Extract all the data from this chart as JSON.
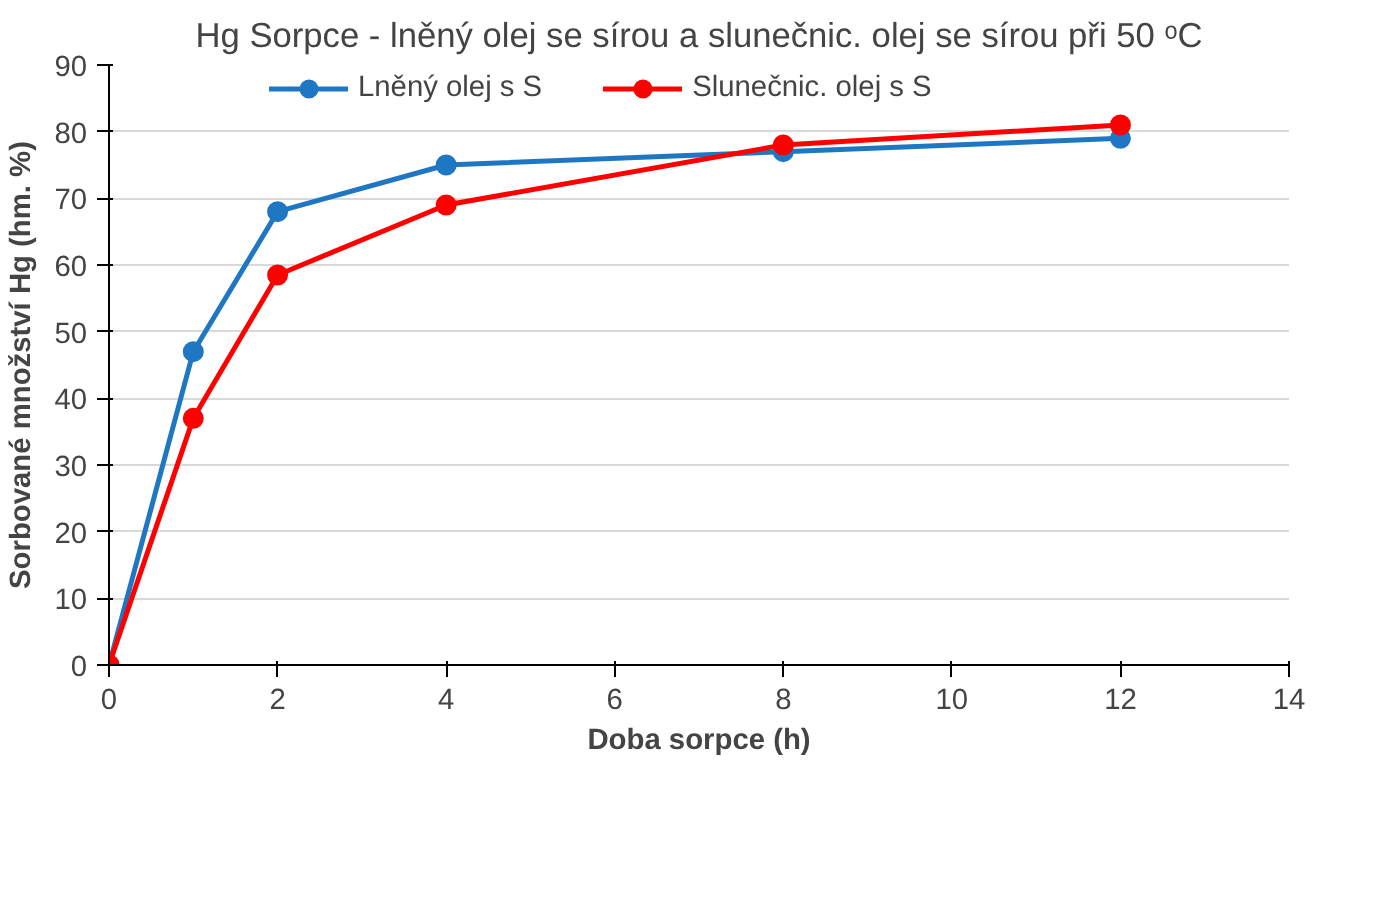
{
  "chart_data": {
    "type": "line",
    "title": "Hg Sorpce - lněný olej se sírou a slunečnic. olej se sírou při 50 ᵒC",
    "xlabel": "Doba sorpce (h)",
    "ylabel": "Sorbované množství Hg (hm. %)",
    "x": [
      0,
      1,
      2,
      4,
      8,
      12
    ],
    "series": [
      {
        "name": "Lněný olej s S",
        "color": "#1f77c4",
        "values": [
          0,
          47,
          68,
          75,
          77,
          79
        ]
      },
      {
        "name": "Slunečnic. olej s S",
        "color": "#ff0000",
        "values": [
          0,
          37,
          58.5,
          69,
          78,
          81
        ]
      }
    ],
    "xlim": [
      0,
      14
    ],
    "xticks": [
      0,
      2,
      4,
      6,
      8,
      10,
      12,
      14
    ],
    "ylim": [
      0,
      90
    ],
    "yticks": [
      0,
      10,
      20,
      30,
      40,
      50,
      60,
      70,
      80,
      90
    ],
    "grid": "y",
    "legend": "top",
    "marker": "circle",
    "line_style": "solid"
  }
}
